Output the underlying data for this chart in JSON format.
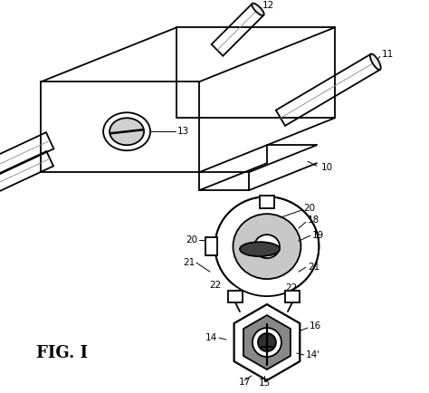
{
  "background_color": "#ffffff",
  "line_color": "#000000",
  "title": "FIG. I",
  "title_fontsize": 13,
  "title_fontweight": "bold"
}
